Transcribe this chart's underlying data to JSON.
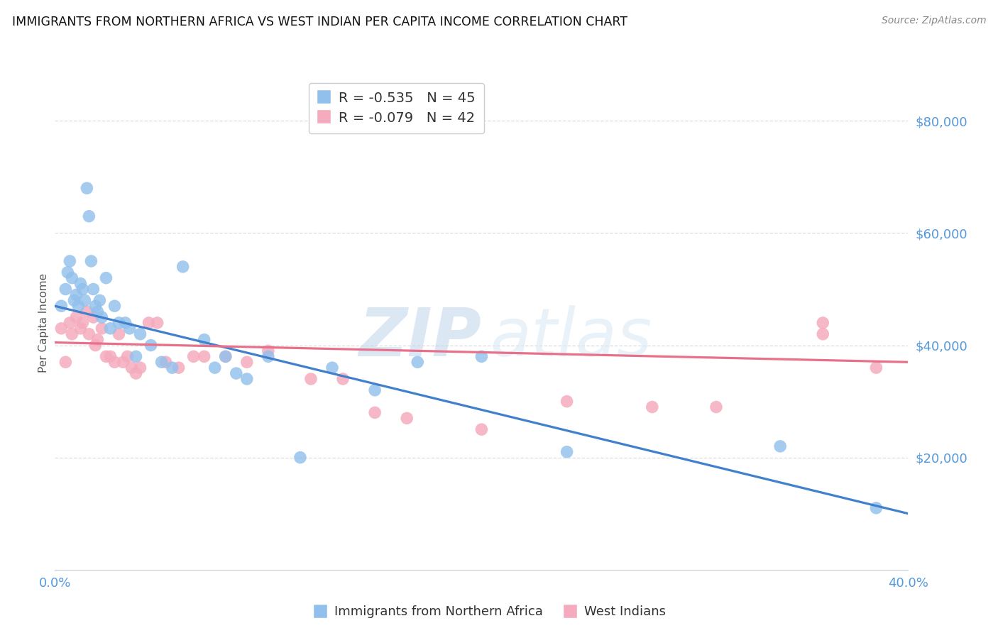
{
  "title": "IMMIGRANTS FROM NORTHERN AFRICA VS WEST INDIAN PER CAPITA INCOME CORRELATION CHART",
  "source": "Source: ZipAtlas.com",
  "ylabel": "Per Capita Income",
  "xlim": [
    0.0,
    0.4
  ],
  "ylim": [
    0,
    88000
  ],
  "yticks": [
    20000,
    40000,
    60000,
    80000
  ],
  "ytick_labels": [
    "$20,000",
    "$40,000",
    "$60,000",
    "$80,000"
  ],
  "xticks": [
    0.0,
    0.08,
    0.16,
    0.24,
    0.32,
    0.4
  ],
  "xtick_labels": [
    "0.0%",
    "",
    "",
    "",
    "",
    "40.0%"
  ],
  "watermark_zip": "ZIP",
  "watermark_atlas": "atlas",
  "blue_R": "-0.535",
  "blue_N": "45",
  "pink_R": "-0.079",
  "pink_N": "42",
  "blue_label": "Immigrants from Northern Africa",
  "pink_label": "West Indians",
  "blue_color": "#92C0EC",
  "pink_color": "#F5ABBE",
  "blue_line_color": "#4080CC",
  "pink_line_color": "#E8708A",
  "background_color": "#FFFFFF",
  "grid_color": "#DDDDDD",
  "title_color": "#111111",
  "axis_label_color": "#5599DD",
  "blue_line_x0": 0.0,
  "blue_line_y0": 47000,
  "blue_line_x1": 0.4,
  "blue_line_y1": 10000,
  "pink_line_x0": 0.0,
  "pink_line_y0": 40500,
  "pink_line_x1": 0.4,
  "pink_line_y1": 37000,
  "blue_scatter_x": [
    0.003,
    0.005,
    0.006,
    0.007,
    0.008,
    0.009,
    0.01,
    0.011,
    0.012,
    0.013,
    0.014,
    0.015,
    0.016,
    0.017,
    0.018,
    0.019,
    0.02,
    0.021,
    0.022,
    0.024,
    0.026,
    0.028,
    0.03,
    0.033,
    0.035,
    0.038,
    0.04,
    0.045,
    0.05,
    0.055,
    0.06,
    0.07,
    0.075,
    0.08,
    0.085,
    0.09,
    0.1,
    0.115,
    0.13,
    0.15,
    0.17,
    0.2,
    0.24,
    0.34,
    0.385
  ],
  "blue_scatter_y": [
    47000,
    50000,
    53000,
    55000,
    52000,
    48000,
    49000,
    47000,
    51000,
    50000,
    48000,
    68000,
    63000,
    55000,
    50000,
    47000,
    46000,
    48000,
    45000,
    52000,
    43000,
    47000,
    44000,
    44000,
    43000,
    38000,
    42000,
    40000,
    37000,
    36000,
    54000,
    41000,
    36000,
    38000,
    35000,
    34000,
    38000,
    20000,
    36000,
    32000,
    37000,
    38000,
    21000,
    22000,
    11000
  ],
  "pink_scatter_x": [
    0.003,
    0.005,
    0.007,
    0.008,
    0.01,
    0.012,
    0.013,
    0.015,
    0.016,
    0.018,
    0.019,
    0.02,
    0.022,
    0.024,
    0.026,
    0.028,
    0.03,
    0.032,
    0.034,
    0.036,
    0.038,
    0.04,
    0.044,
    0.048,
    0.052,
    0.058,
    0.065,
    0.07,
    0.08,
    0.09,
    0.1,
    0.12,
    0.135,
    0.15,
    0.165,
    0.2,
    0.24,
    0.28,
    0.31,
    0.36,
    0.36,
    0.385
  ],
  "pink_scatter_y": [
    43000,
    37000,
    44000,
    42000,
    45000,
    43000,
    44000,
    46000,
    42000,
    45000,
    40000,
    41000,
    43000,
    38000,
    38000,
    37000,
    42000,
    37000,
    38000,
    36000,
    35000,
    36000,
    44000,
    44000,
    37000,
    36000,
    38000,
    38000,
    38000,
    37000,
    39000,
    34000,
    34000,
    28000,
    27000,
    25000,
    30000,
    29000,
    29000,
    42000,
    44000,
    36000
  ]
}
